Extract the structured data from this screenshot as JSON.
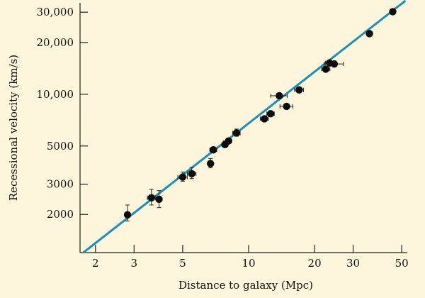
{
  "chart_data": {
    "type": "scatter",
    "xlabel": "Distance to galaxy (Mpc)",
    "ylabel": "Recessional velocity (km/s)",
    "xscale": "log",
    "yscale": "log",
    "xlim": [
      1.7,
      53
    ],
    "ylim": [
      1200,
      34000
    ],
    "grid": false,
    "colors": {
      "fit_line": "#1e8fb0",
      "points": "#0b0b0b",
      "background": "#fdf5dc"
    },
    "x_ticks": [
      {
        "value": 2,
        "label": "2"
      },
      {
        "value": 3,
        "label": "3"
      },
      {
        "value": 5,
        "label": "5"
      },
      {
        "value": 10,
        "label": "10"
      },
      {
        "value": 20,
        "label": "20"
      },
      {
        "value": 30,
        "label": "30"
      },
      {
        "value": 50,
        "label": "50"
      }
    ],
    "y_ticks": [
      {
        "value": 2000,
        "label": "2000"
      },
      {
        "value": 3000,
        "label": "3000"
      },
      {
        "value": 5000,
        "label": "5000"
      },
      {
        "value": 10000,
        "label": "10,000"
      },
      {
        "value": 20000,
        "label": "20,000"
      },
      {
        "value": 30000,
        "label": "30,000"
      }
    ],
    "fit_line": {
      "x": [
        1.76,
        52
      ],
      "y": [
        1200,
        35000
      ]
    },
    "points": [
      {
        "x": 2.8,
        "y": 1990,
        "xerr": 0.03,
        "yerr_lo": 160,
        "yerr_hi": 280
      },
      {
        "x": 3.6,
        "y": 2500,
        "xerr": 0.15,
        "yerr_lo": 230,
        "yerr_hi": 300
      },
      {
        "x": 3.9,
        "y": 2450,
        "xerr": 0.1,
        "yerr_lo": 260,
        "yerr_hi": 300
      },
      {
        "x": 5.0,
        "y": 3300,
        "xerr": 0.25,
        "yerr_lo": 180,
        "yerr_hi": 230
      },
      {
        "x": 5.5,
        "y": 3450,
        "xerr": 0.25,
        "yerr_lo": 220,
        "yerr_hi": 300
      },
      {
        "x": 6.7,
        "y": 3950,
        "xerr": 0.1,
        "yerr_lo": 220,
        "yerr_hi": 280
      },
      {
        "x": 6.9,
        "y": 4750,
        "xerr": 0.25,
        "yerr_lo": 0,
        "yerr_hi": 0
      },
      {
        "x": 7.8,
        "y": 5100,
        "xerr": 0.25,
        "yerr_lo": 200,
        "yerr_hi": 250
      },
      {
        "x": 8.1,
        "y": 5350,
        "xerr": 0.25,
        "yerr_lo": 0,
        "yerr_hi": 0
      },
      {
        "x": 8.8,
        "y": 5950,
        "xerr": 0.35,
        "yerr_lo": 250,
        "yerr_hi": 320
      },
      {
        "x": 11.8,
        "y": 7200,
        "xerr": 0.5,
        "yerr_lo": 0,
        "yerr_hi": 0
      },
      {
        "x": 12.6,
        "y": 7700,
        "xerr": 0.5,
        "yerr_lo": 200,
        "yerr_hi": 250
      },
      {
        "x": 13.8,
        "y": 9800,
        "xerr": 1.2,
        "yerr_lo": 0,
        "yerr_hi": 0
      },
      {
        "x": 14.9,
        "y": 8500,
        "xerr": 1.0,
        "yerr_lo": 0,
        "yerr_hi": 0
      },
      {
        "x": 17.0,
        "y": 10600,
        "xerr": 0.8,
        "yerr_lo": 0,
        "yerr_hi": 0
      },
      {
        "x": 22.5,
        "y": 14000,
        "xerr": 1.0,
        "yerr_lo": 0,
        "yerr_hi": 0
      },
      {
        "x": 23.4,
        "y": 15200,
        "xerr": 1.0,
        "yerr_lo": 0,
        "yerr_hi": 0
      },
      {
        "x": 24.6,
        "y": 15000,
        "xerr": 2.5,
        "yerr_lo": 0,
        "yerr_hi": 0
      },
      {
        "x": 35.6,
        "y": 22500,
        "xerr": 1.0,
        "yerr_lo": 0,
        "yerr_hi": 0
      },
      {
        "x": 45.5,
        "y": 30200,
        "xerr": 0,
        "yerr_lo": 0,
        "yerr_hi": 0
      }
    ]
  }
}
